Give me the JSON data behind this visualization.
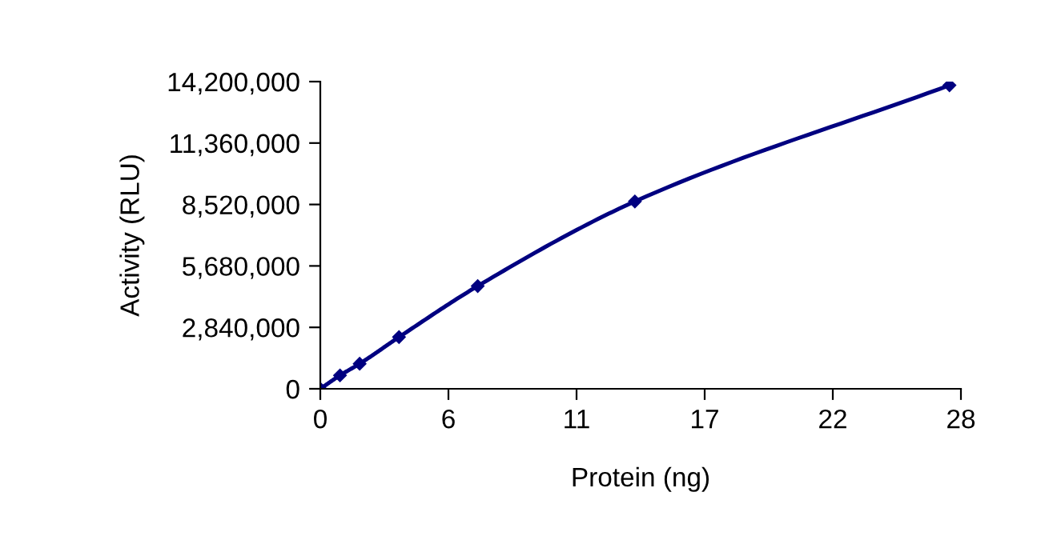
{
  "chart_data": {
    "type": "line",
    "xlabel": "Protein (ng)",
    "ylabel": "Activity (RLU)",
    "x": [
      0,
      0.86,
      1.72,
      3.44,
      6.88,
      13.75,
      27.5
    ],
    "series": [
      {
        "color": "#000080",
        "values": [
          0,
          620000,
          1160000,
          2390000,
          4750000,
          8660000,
          14030000
        ]
      }
    ],
    "xlim": [
      0,
      28
    ],
    "xticks": [
      0,
      {
        "value": 5.6,
        "label": "6"
      },
      {
        "value": 11.2,
        "label": "11"
      },
      {
        "value": 16.8,
        "label": "17"
      },
      {
        "value": 22.4,
        "label": "22"
      },
      28
    ],
    "ylim": [
      0,
      14200000
    ],
    "yticks": [
      {
        "value": 0,
        "label": "0"
      },
      {
        "value": 2840000,
        "label": "2,840,000"
      },
      {
        "value": 5680000,
        "label": "5,680,000"
      },
      {
        "value": 8520000,
        "label": "8,520,000"
      },
      {
        "value": 11360000,
        "label": "11,360,000"
      },
      {
        "value": 14200000,
        "label": "14,200,000"
      }
    ],
    "marker": "diamond",
    "line_style": "solid"
  }
}
